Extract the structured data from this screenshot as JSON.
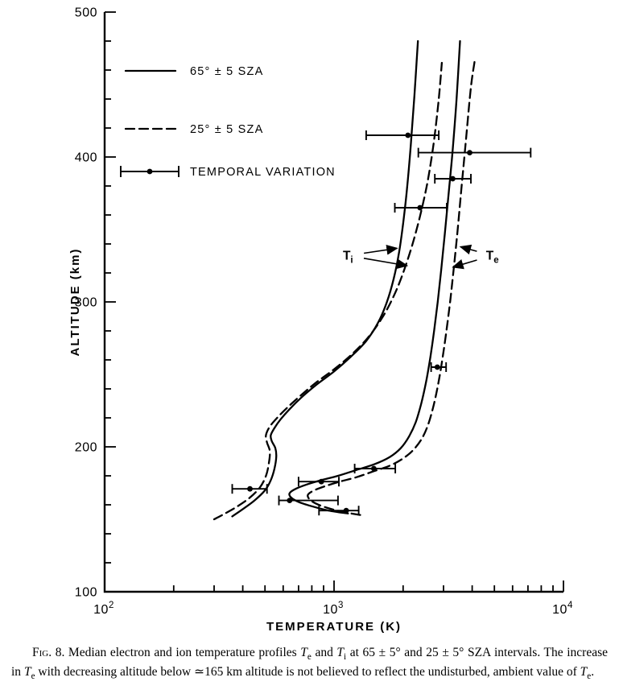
{
  "figure": {
    "caption_segments": [
      {
        "t": "Fig. 8.",
        "sc": true
      },
      {
        "t": " Median electron and ion temperature profiles "
      },
      {
        "t": "T",
        "i": true
      },
      {
        "t": "e",
        "sub": true
      },
      {
        "t": " and "
      },
      {
        "t": "T",
        "i": true
      },
      {
        "t": "i",
        "sub": true
      },
      {
        "t": " at 65 ± 5° and 25 ± 5° SZA intervals. The increase in "
      },
      {
        "t": "T",
        "i": true
      },
      {
        "t": "e",
        "sub": true
      },
      {
        "t": " with decreasing altitude below ≃165 km altitude is not believed to reflect the undisturbed, ambient value of "
      },
      {
        "t": "T",
        "i": true
      },
      {
        "t": "e",
        "sub": true
      },
      {
        "t": "."
      }
    ]
  },
  "chart_data": {
    "type": "line",
    "title": "",
    "xlabel": "TEMPERATURE (K)",
    "ylabel": "ALTITUDE (km)",
    "xscale": "log",
    "xlim": [
      100,
      10000
    ],
    "ylim": [
      100,
      500
    ],
    "x_ticks": [
      {
        "value": 100,
        "base": "10",
        "exp": "2"
      },
      {
        "value": 1000,
        "base": "10",
        "exp": "3"
      },
      {
        "value": 10000,
        "base": "10",
        "exp": "4"
      }
    ],
    "y_ticks": [
      100,
      200,
      300,
      400,
      500
    ],
    "y_minor_step": 20,
    "grid": false,
    "legend_position": "upper-left-inside",
    "legend": [
      {
        "style": "solid",
        "label": "65° ± 5 SZA"
      },
      {
        "style": "dashed",
        "label": "25° ± 5 SZA"
      },
      {
        "style": "errorbar",
        "label": "TEMPORAL VARIATION"
      }
    ],
    "series": [
      {
        "name": "Ti 65 SZA",
        "style": "solid",
        "points": [
          [
            360,
            152
          ],
          [
            400,
            157
          ],
          [
            450,
            163
          ],
          [
            500,
            170
          ],
          [
            530,
            177
          ],
          [
            550,
            185
          ],
          [
            560,
            193
          ],
          [
            555,
            199
          ],
          [
            535,
            204
          ],
          [
            530,
            208
          ],
          [
            550,
            213
          ],
          [
            585,
            219
          ],
          [
            640,
            226
          ],
          [
            720,
            234
          ],
          [
            840,
            243
          ],
          [
            1000,
            252
          ],
          [
            1180,
            262
          ],
          [
            1380,
            273
          ],
          [
            1560,
            286
          ],
          [
            1700,
            300
          ],
          [
            1820,
            316
          ],
          [
            1920,
            334
          ],
          [
            2000,
            354
          ],
          [
            2080,
            378
          ],
          [
            2160,
            408
          ],
          [
            2240,
            442
          ],
          [
            2320,
            480
          ]
        ]
      },
      {
        "name": "Ti 25 SZA",
        "style": "dashed",
        "points": [
          [
            300,
            150
          ],
          [
            335,
            154
          ],
          [
            380,
            159
          ],
          [
            430,
            165
          ],
          [
            475,
            172
          ],
          [
            505,
            180
          ],
          [
            520,
            189
          ],
          [
            525,
            197
          ],
          [
            510,
            203
          ],
          [
            505,
            208
          ],
          [
            525,
            214
          ],
          [
            565,
            220
          ],
          [
            625,
            227
          ],
          [
            710,
            235
          ],
          [
            830,
            244
          ],
          [
            990,
            253
          ],
          [
            1180,
            263
          ],
          [
            1400,
            275
          ],
          [
            1620,
            289
          ],
          [
            1820,
            304
          ],
          [
            2000,
            320
          ],
          [
            2180,
            338
          ],
          [
            2360,
            358
          ],
          [
            2550,
            382
          ],
          [
            2720,
            410
          ],
          [
            2860,
            440
          ],
          [
            2950,
            465
          ]
        ]
      },
      {
        "name": "Te 65 SZA",
        "style": "solid",
        "points": [
          [
            1150,
            154
          ],
          [
            950,
            156
          ],
          [
            800,
            159
          ],
          [
            700,
            162
          ],
          [
            650,
            165
          ],
          [
            640,
            168
          ],
          [
            680,
            171
          ],
          [
            760,
            174
          ],
          [
            880,
            177
          ],
          [
            1040,
            180
          ],
          [
            1250,
            184
          ],
          [
            1500,
            188
          ],
          [
            1750,
            193
          ],
          [
            1950,
            199
          ],
          [
            2120,
            207
          ],
          [
            2270,
            217
          ],
          [
            2400,
            230
          ],
          [
            2520,
            245
          ],
          [
            2630,
            262
          ],
          [
            2730,
            280
          ],
          [
            2830,
            300
          ],
          [
            2930,
            322
          ],
          [
            3040,
            347
          ],
          [
            3160,
            375
          ],
          [
            3290,
            405
          ],
          [
            3420,
            440
          ],
          [
            3540,
            480
          ]
        ]
      },
      {
        "name": "Te 25 SZA",
        "style": "dashed",
        "points": [
          [
            1300,
            153
          ],
          [
            1100,
            155
          ],
          [
            930,
            158
          ],
          [
            830,
            161
          ],
          [
            780,
            164
          ],
          [
            770,
            167
          ],
          [
            820,
            170
          ],
          [
            920,
            173
          ],
          [
            1060,
            176
          ],
          [
            1250,
            179
          ],
          [
            1480,
            183
          ],
          [
            1750,
            187
          ],
          [
            2000,
            192
          ],
          [
            2220,
            198
          ],
          [
            2420,
            206
          ],
          [
            2580,
            216
          ],
          [
            2720,
            229
          ],
          [
            2850,
            244
          ],
          [
            2970,
            261
          ],
          [
            3090,
            280
          ],
          [
            3210,
            301
          ],
          [
            3330,
            324
          ],
          [
            3460,
            350
          ],
          [
            3600,
            380
          ],
          [
            3760,
            412
          ],
          [
            3950,
            448
          ],
          [
            4100,
            466
          ]
        ]
      }
    ],
    "error_bars": [
      {
        "altitude": 415,
        "t": 2100,
        "t_low": 1380,
        "t_high": 2860
      },
      {
        "altitude": 403,
        "t": 3900,
        "t_low": 2330,
        "t_high": 7200
      },
      {
        "altitude": 385,
        "t": 3290,
        "t_low": 2750,
        "t_high": 3950
      },
      {
        "altitude": 365,
        "t": 2370,
        "t_low": 1840,
        "t_high": 3100
      },
      {
        "altitude": 255,
        "t": 2820,
        "t_low": 2650,
        "t_high": 3080
      },
      {
        "altitude": 185,
        "t": 1490,
        "t_low": 1230,
        "t_high": 1850
      },
      {
        "altitude": 176,
        "t": 880,
        "t_low": 700,
        "t_high": 1050
      },
      {
        "altitude": 171,
        "t": 430,
        "t_low": 360,
        "t_high": 510
      },
      {
        "altitude": 163,
        "t": 640,
        "t_low": 575,
        "t_high": 1040
      },
      {
        "altitude": 156,
        "t": 1130,
        "t_low": 860,
        "t_high": 1280
      }
    ],
    "annotations": [
      {
        "main": "T",
        "sub": "i",
        "t": 1150,
        "altitude": 332,
        "arrows": [
          {
            "t": 1880,
            "altitude": 337
          },
          {
            "t": 2080,
            "altitude": 325
          }
        ]
      },
      {
        "main": "T",
        "sub": "e",
        "t": 4900,
        "altitude": 332,
        "arrows": [
          {
            "t": 3560,
            "altitude": 338
          },
          {
            "t": 3300,
            "altitude": 324
          }
        ]
      }
    ]
  }
}
